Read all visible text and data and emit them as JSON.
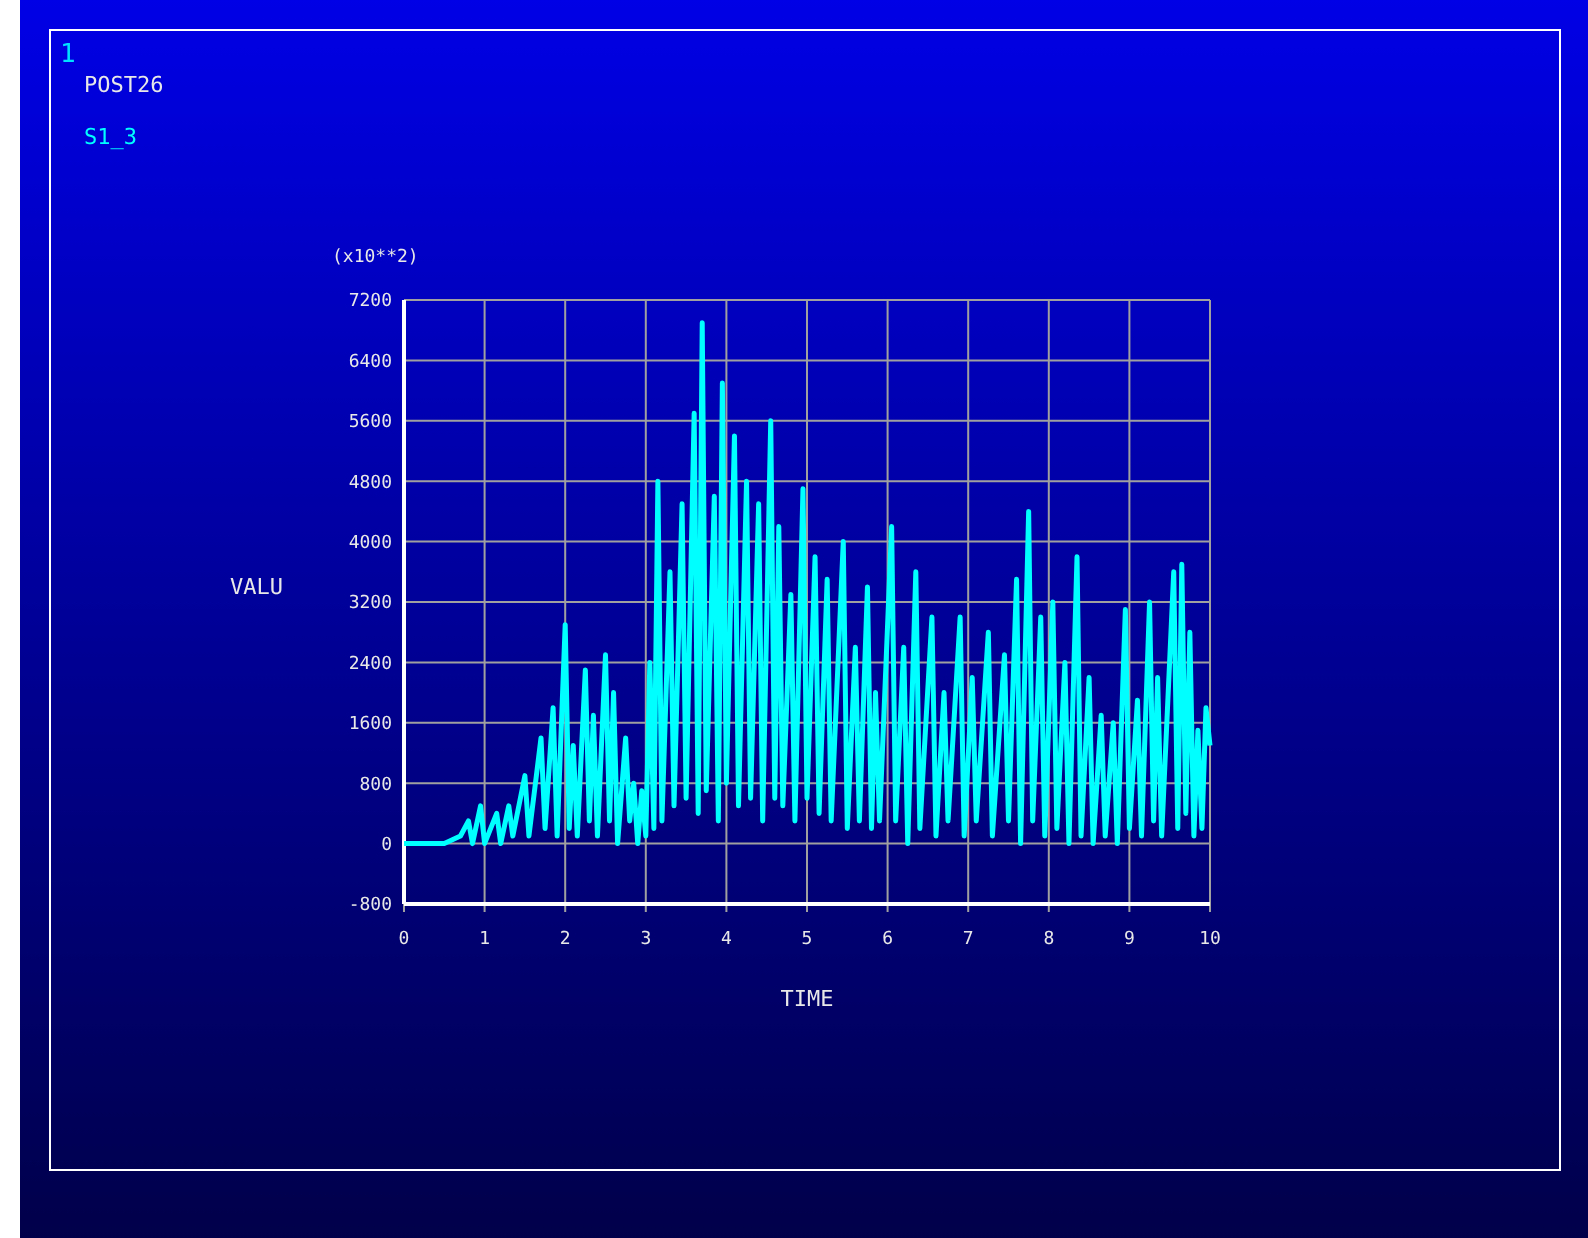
{
  "chart_data": {
    "type": "line",
    "title": "POST26",
    "xlabel": "TIME",
    "ylabel": "VALU",
    "annotations": [
      "1",
      "(x10**2)"
    ],
    "legend": "top left",
    "grid": true,
    "marker": "none",
    "line_style": "solid",
    "xlim": [
      0,
      10
    ],
    "xticks": [
      0,
      1,
      2,
      3,
      4,
      5,
      6,
      7,
      8,
      9,
      10
    ],
    "ylim": [
      -800,
      7200
    ],
    "yticks": [
      -800,
      0,
      800,
      1600,
      2400,
      3200,
      4000,
      4800,
      5600,
      6400,
      7200
    ],
    "series": [
      {
        "name": "S1_3",
        "color": "#00ffff",
        "x": [
          0,
          0.5,
          0.7,
          0.8,
          0.85,
          0.95,
          1.0,
          1.15,
          1.2,
          1.3,
          1.35,
          1.5,
          1.55,
          1.7,
          1.75,
          1.85,
          1.9,
          2.0,
          2.05,
          2.1,
          2.15,
          2.25,
          2.3,
          2.35,
          2.4,
          2.5,
          2.55,
          2.6,
          2.65,
          2.75,
          2.8,
          2.85,
          2.9,
          2.95,
          3.0,
          3.05,
          3.1,
          3.15,
          3.2,
          3.3,
          3.35,
          3.45,
          3.5,
          3.6,
          3.65,
          3.7,
          3.75,
          3.85,
          3.9,
          3.95,
          4.0,
          4.1,
          4.15,
          4.25,
          4.3,
          4.4,
          4.45,
          4.55,
          4.6,
          4.65,
          4.7,
          4.8,
          4.85,
          4.95,
          5.0,
          5.1,
          5.15,
          5.25,
          5.3,
          5.45,
          5.5,
          5.6,
          5.65,
          5.75,
          5.8,
          5.85,
          5.9,
          6.05,
          6.1,
          6.2,
          6.25,
          6.35,
          6.4,
          6.55,
          6.6,
          6.7,
          6.75,
          6.9,
          6.95,
          7.05,
          7.1,
          7.25,
          7.3,
          7.45,
          7.5,
          7.6,
          7.65,
          7.75,
          7.8,
          7.9,
          7.95,
          8.05,
          8.1,
          8.2,
          8.25,
          8.35,
          8.4,
          8.5,
          8.55,
          8.65,
          8.7,
          8.8,
          8.85,
          8.95,
          9.0,
          9.1,
          9.15,
          9.25,
          9.3,
          9.35,
          9.4,
          9.55,
          9.6,
          9.65,
          9.7,
          9.75,
          9.8,
          9.85,
          9.9,
          9.95,
          10.0
        ],
        "values": [
          0,
          0,
          100,
          300,
          0,
          500,
          0,
          400,
          0,
          500,
          100,
          900,
          100,
          1400,
          200,
          1800,
          100,
          2900,
          200,
          1300,
          100,
          2300,
          300,
          1700,
          100,
          2500,
          300,
          2000,
          0,
          1400,
          300,
          800,
          0,
          700,
          100,
          2400,
          200,
          4800,
          300,
          3600,
          500,
          4500,
          600,
          5700,
          400,
          6900,
          700,
          4600,
          300,
          6100,
          800,
          5400,
          500,
          4800,
          600,
          4500,
          300,
          5600,
          600,
          4200,
          500,
          3300,
          300,
          4700,
          600,
          3800,
          400,
          3500,
          300,
          4000,
          200,
          2600,
          300,
          3400,
          200,
          2000,
          300,
          4200,
          300,
          2600,
          0,
          3600,
          200,
          3000,
          100,
          2000,
          300,
          3000,
          100,
          2200,
          300,
          2800,
          100,
          2500,
          300,
          3500,
          0,
          4400,
          300,
          3000,
          100,
          3200,
          200,
          2400,
          0,
          3800,
          100,
          2200,
          0,
          1700,
          100,
          1600,
          0,
          3100,
          200,
          1900,
          100,
          3200,
          300,
          2200,
          100,
          3600,
          200,
          3700,
          400,
          2800,
          100,
          1500,
          200,
          1800,
          1300
        ]
      }
    ]
  }
}
